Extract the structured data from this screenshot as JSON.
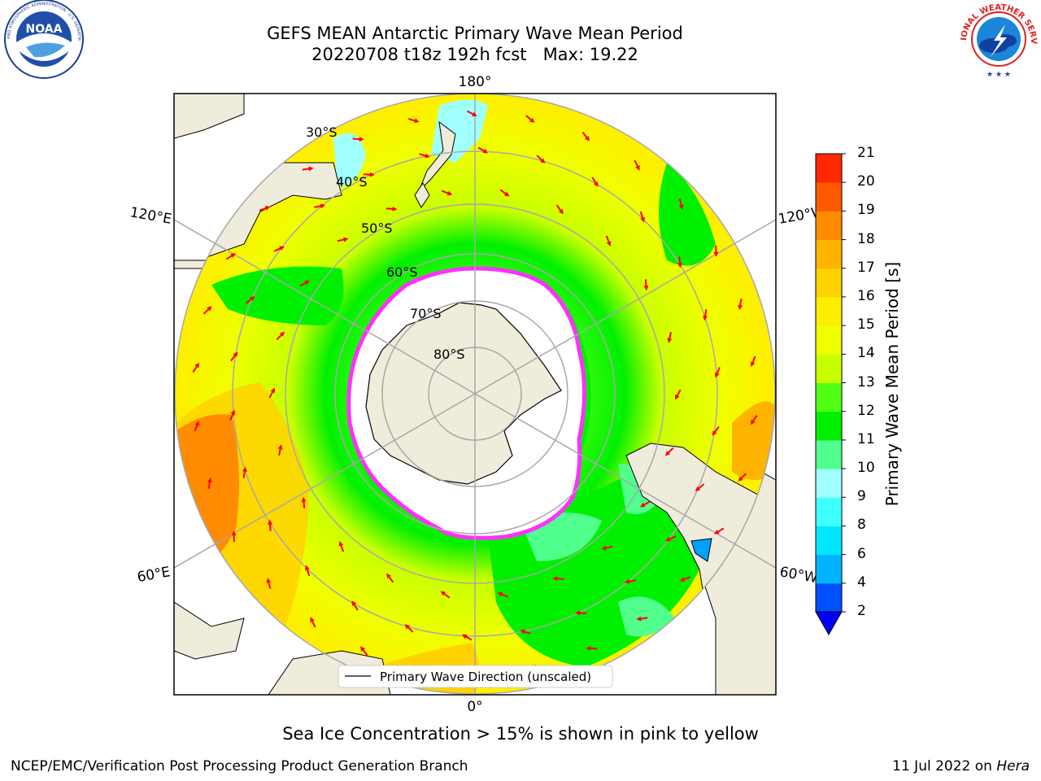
{
  "header": {
    "title_line1": "GEFS MEAN Antarctic Primary Wave Mean Period",
    "title_line2": "20220708 t18z 192h fcst   Max: 19.22"
  },
  "logos": {
    "left": "NOAA",
    "left_ring_text": "NATIONAL OCEANIC AND ATMOSPHERIC ADMINISTRATION · U.S. DEPARTMENT OF COMMERCE",
    "right_ring_text": "NATIONAL WEATHER SERVICE"
  },
  "map": {
    "lon_labels": {
      "top": "180°",
      "bottom": "0°",
      "upper_left": "120°E",
      "upper_right": "120°W",
      "lower_left": "60°E",
      "lower_right": "60°W"
    },
    "lat_labels": [
      "30°S",
      "40°S",
      "50°S",
      "60°S",
      "70°S",
      "80°S"
    ],
    "legend": "Primary Wave Direction (unscaled)"
  },
  "colorbar": {
    "title": "Primary Wave Mean Period [s]",
    "ticks": [
      "2",
      "4",
      "6",
      "8",
      "9",
      "10",
      "11",
      "12",
      "13",
      "14",
      "15",
      "16",
      "17",
      "18",
      "19",
      "20",
      "21"
    ],
    "colors": [
      "#0050ff",
      "#00b4ff",
      "#00e6ff",
      "#40ffff",
      "#a0ffff",
      "#50ff8c",
      "#00f000",
      "#50ff14",
      "#c8ff00",
      "#f0ff00",
      "#ffee00",
      "#ffd200",
      "#ffb400",
      "#ff8c00",
      "#ff5a00",
      "#ff2800",
      "#ff0000"
    ],
    "extend_color": "#0000ff"
  },
  "subtitle": "Sea Ice Concentration > 15% is shown in pink to yellow",
  "footer": {
    "left": "NCEP/EMC/Verification Post Processing Product Generation Branch",
    "right_date": "11 Jul 2022 on ",
    "right_machine": "Hera"
  }
}
